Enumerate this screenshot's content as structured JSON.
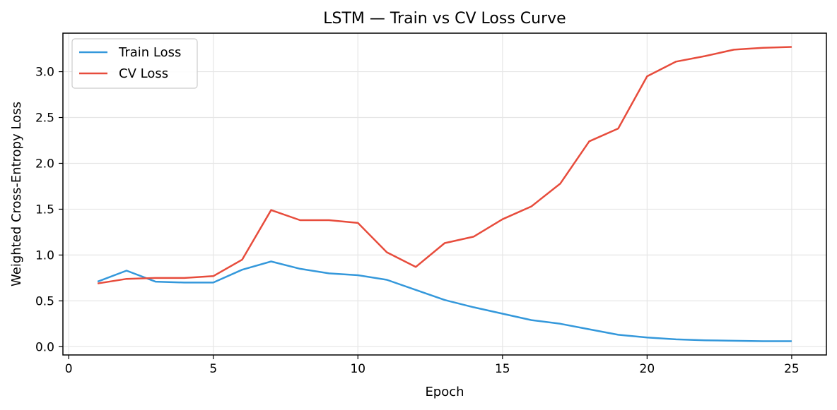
{
  "chart_data": {
    "type": "line",
    "title": "LSTM — Train vs CV Loss Curve",
    "xlabel": "Epoch",
    "ylabel": "Weighted Cross-Entropy Loss",
    "xlim": [
      -0.2,
      26.2
    ],
    "ylim": [
      -0.09,
      3.42
    ],
    "xticks": [
      0,
      5,
      10,
      15,
      20,
      25
    ],
    "xtick_labels": [
      "0",
      "5",
      "10",
      "15",
      "20",
      "25"
    ],
    "yticks": [
      0.0,
      0.5,
      1.0,
      1.5,
      2.0,
      2.5,
      3.0
    ],
    "ytick_labels": [
      "0.0",
      "0.5",
      "1.0",
      "1.5",
      "2.0",
      "2.5",
      "3.0"
    ],
    "grid": true,
    "legend_position": "top-left",
    "x": [
      1,
      2,
      3,
      4,
      5,
      6,
      7,
      8,
      9,
      10,
      11,
      12,
      13,
      14,
      15,
      16,
      17,
      18,
      19,
      20,
      21,
      22,
      23,
      24,
      25
    ],
    "series": [
      {
        "name": "Train Loss",
        "color": "#3498db",
        "values": [
          0.71,
          0.83,
          0.71,
          0.7,
          0.7,
          0.84,
          0.93,
          0.85,
          0.8,
          0.78,
          0.73,
          0.62,
          0.51,
          0.43,
          0.36,
          0.29,
          0.25,
          0.19,
          0.13,
          0.1,
          0.08,
          0.07,
          0.065,
          0.06,
          0.06
        ]
      },
      {
        "name": "CV Loss",
        "color": "#e74c3c",
        "values": [
          0.69,
          0.74,
          0.75,
          0.75,
          0.77,
          0.95,
          1.49,
          1.38,
          1.38,
          1.35,
          1.03,
          0.87,
          1.13,
          1.2,
          1.39,
          1.53,
          1.78,
          2.24,
          2.38,
          2.95,
          3.11,
          3.17,
          3.24,
          3.26,
          3.27
        ]
      }
    ]
  }
}
